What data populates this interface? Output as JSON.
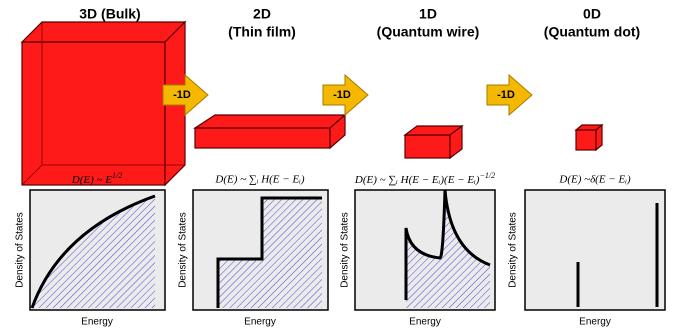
{
  "panels": [
    {
      "title": [
        "3D (Bulk)"
      ],
      "formula": {
        "text": "D(E) ~ E",
        "sup": "1/2"
      },
      "ylabel": "Density of States",
      "xlabel": "Energy"
    },
    {
      "title": [
        "2D",
        "(Thin film)"
      ],
      "formula": {
        "text": "D(E) ~ ∑ᵢ H(E − Eᵢ)"
      },
      "ylabel": "Density of States",
      "xlabel": "Energy"
    },
    {
      "title": [
        "1D",
        "(Quantum wire)"
      ],
      "formula": {
        "text": "D(E) ~ ∑ᵢ H(E − Eᵢ)(E − Eᵢ)",
        "sup": "−1/2"
      },
      "ylabel": "Density of States",
      "xlabel": "Energy"
    },
    {
      "title": [
        "0D",
        "(Quantum dot)"
      ],
      "formula": {
        "text": "D(E) ~δ(E − Eᵢ)"
      },
      "ylabel": "Density of States",
      "xlabel": "Energy"
    }
  ],
  "arrows": [
    "-1D",
    "-1D",
    "-1D"
  ]
}
